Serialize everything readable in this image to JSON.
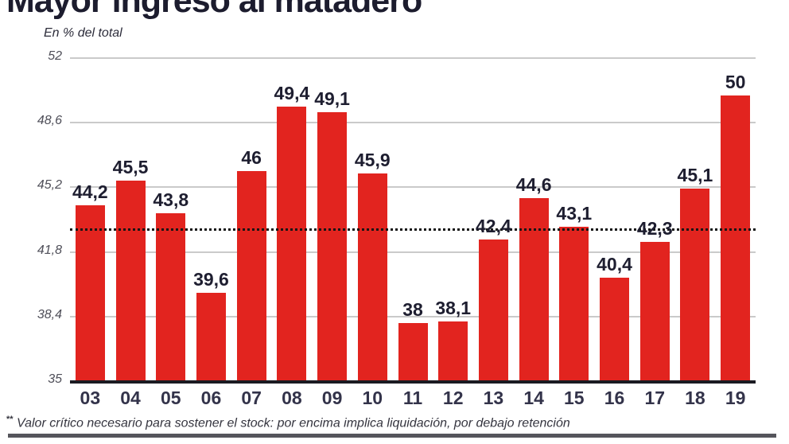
{
  "title": "Mayor ingreso al matadero",
  "subtitle": "En % del total",
  "footnote": {
    "marker": "**",
    "text": "Valor crítico necesario para sostener el stock: por encima implica liquidación, por debajo retención"
  },
  "colors": {
    "bar": "#e2241f",
    "value_label": "#1e1e30",
    "tick_label": "#4e4e58",
    "gridline": "#cacaca",
    "axis": "#1b1b22",
    "critical_line": "#151515",
    "bottom_rule": "#55555c"
  },
  "chart_data": {
    "type": "bar",
    "title": "Mayor ingreso al matadero",
    "subtitle": "En % del total",
    "xlabel": "",
    "ylabel": "En % del total",
    "categories": [
      "03",
      "04",
      "05",
      "06",
      "07",
      "08",
      "09",
      "10",
      "11",
      "12",
      "13",
      "14",
      "15",
      "16",
      "17",
      "18",
      "19"
    ],
    "values": [
      44.2,
      45.5,
      43.8,
      39.6,
      46,
      49.4,
      49.1,
      45.9,
      38,
      38.1,
      42.4,
      44.6,
      43.1,
      40.4,
      42.3,
      45.1,
      50
    ],
    "value_labels": [
      "44,2",
      "45,5",
      "43,8",
      "39,6",
      "46",
      "49,4",
      "49,1",
      "45,9",
      "38",
      "38,1",
      "42,4",
      "44,6",
      "43,1",
      "40,4",
      "42,3",
      "45,1",
      "50"
    ],
    "ylim": [
      35,
      52
    ],
    "yticks": [
      52,
      48.6,
      45.2,
      41.8,
      38.4,
      35
    ],
    "ytick_labels": [
      "52",
      "48,6",
      "45,2",
      "41,8",
      "38,4",
      "35"
    ],
    "critical_value": 43,
    "critical_value_note": "Valor crítico necesario para sostener el stock: por encima implica liquidación, por debajo retención",
    "grid": true,
    "legend": false,
    "bar_color": "#e2241f"
  }
}
